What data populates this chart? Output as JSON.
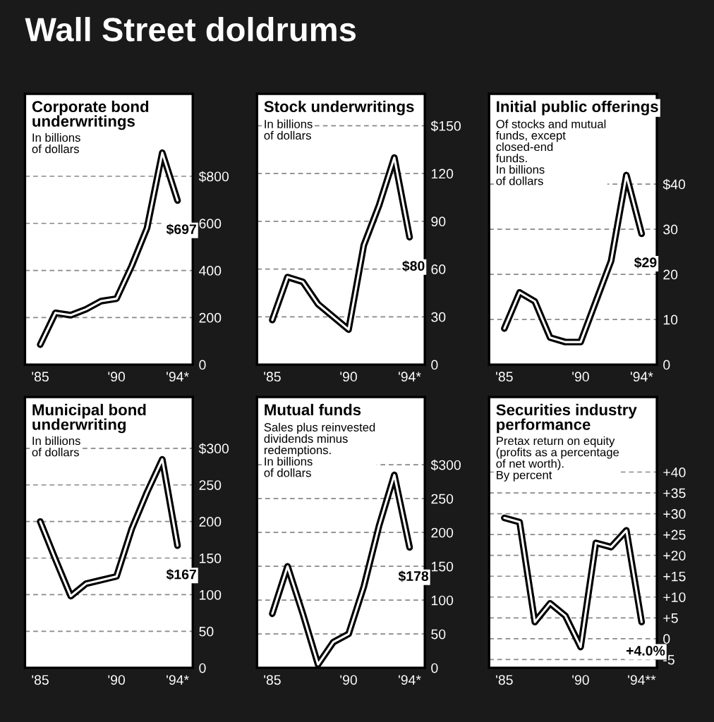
{
  "chart_data": [
    {
      "type": "other",
      "title": "Wall Street doldrums"
    },
    {
      "type": "line",
      "title": "Corporate bond\nunderwritings",
      "subtitle": "In billions\nof dollars",
      "x": [
        85,
        86,
        87,
        88,
        89,
        90,
        91,
        92,
        93,
        94
      ],
      "series": [
        {
          "color": "#000000",
          "values": [
            85,
            220,
            210,
            235,
            270,
            280,
            420,
            580,
            900,
            697
          ],
          "value_labels": [
            null,
            null,
            null,
            null,
            null,
            null,
            null,
            null,
            null,
            "$697"
          ]
        }
      ],
      "xlim": [
        84,
        95
      ],
      "xticks": [
        {
          "value": 85,
          "label": "'85"
        },
        {
          "value": 86,
          "label": null
        },
        {
          "value": 87,
          "label": null
        },
        {
          "value": 88,
          "label": null
        },
        {
          "value": 89,
          "label": null
        },
        {
          "value": 90,
          "label": "'90"
        },
        {
          "value": 91,
          "label": null
        },
        {
          "value": 92,
          "label": null
        },
        {
          "value": 93,
          "label": null
        },
        {
          "value": 94,
          "label": "'94*"
        }
      ],
      "ylim": [
        0,
        1150
      ],
      "yticks": [
        0,
        200,
        400,
        600,
        {
          "value": 800,
          "label": "$800"
        }
      ],
      "grid": "y"
    },
    {
      "type": "line",
      "title": "Stock underwritings",
      "subtitle": "In billions\nof dollars",
      "x": [
        85,
        86,
        87,
        88,
        89,
        90,
        91,
        92,
        93,
        94
      ],
      "series": [
        {
          "color": "#000000",
          "values": [
            28,
            55,
            52,
            38,
            30,
            22,
            75,
            100,
            130,
            80
          ],
          "value_labels": [
            null,
            null,
            null,
            null,
            null,
            null,
            null,
            null,
            null,
            "$80"
          ]
        }
      ],
      "xlim": [
        84,
        95
      ],
      "xticks": [
        {
          "value": 85,
          "label": "'85"
        },
        {
          "value": 86,
          "label": null
        },
        {
          "value": 87,
          "label": null
        },
        {
          "value": 88,
          "label": null
        },
        {
          "value": 89,
          "label": null
        },
        {
          "value": 90,
          "label": "'90"
        },
        {
          "value": 91,
          "label": null
        },
        {
          "value": 92,
          "label": null
        },
        {
          "value": 93,
          "label": null
        },
        {
          "value": 94,
          "label": "'94*"
        }
      ],
      "ylim": [
        0,
        170
      ],
      "yticks": [
        0,
        30,
        60,
        90,
        120,
        {
          "value": 150,
          "label": "$150"
        }
      ],
      "grid": "y"
    },
    {
      "type": "line",
      "title": "Initial public offerings",
      "subtitle": "Of stocks and mutual\nfunds, except\nclosed-end\nfunds.\nIn billions\nof dollars",
      "x": [
        85,
        86,
        87,
        88,
        89,
        90,
        91,
        92,
        93,
        94
      ],
      "series": [
        {
          "color": "#000000",
          "values": [
            8,
            16,
            14,
            6,
            5,
            5,
            14,
            23,
            42,
            29
          ],
          "value_labels": [
            null,
            null,
            null,
            null,
            null,
            null,
            null,
            null,
            null,
            "$29"
          ]
        }
      ],
      "xlim": [
        84,
        95
      ],
      "xticks": [
        {
          "value": 85,
          "label": "'85"
        },
        {
          "value": 86,
          "label": null
        },
        {
          "value": 87,
          "label": null
        },
        {
          "value": 88,
          "label": null
        },
        {
          "value": 89,
          "label": null
        },
        {
          "value": 90,
          "label": "'90"
        },
        {
          "value": 91,
          "label": null
        },
        {
          "value": 92,
          "label": null
        },
        {
          "value": 93,
          "label": null
        },
        {
          "value": 94,
          "label": "'94*"
        }
      ],
      "ylim": [
        0,
        60
      ],
      "yticks": [
        0,
        10,
        20,
        30,
        {
          "value": 40,
          "label": "$40"
        }
      ],
      "grid": "y"
    },
    {
      "type": "line",
      "title": "Municipal bond\nunderwriting",
      "subtitle": "In billions\nof dollars",
      "x": [
        85,
        86,
        87,
        88,
        89,
        90,
        91,
        92,
        93,
        94
      ],
      "series": [
        {
          "color": "#000000",
          "values": [
            200,
            148,
            98,
            115,
            120,
            125,
            190,
            240,
            285,
            167
          ],
          "value_labels": [
            null,
            null,
            null,
            null,
            null,
            null,
            null,
            null,
            null,
            "$167"
          ]
        }
      ],
      "xlim": [
        84,
        95
      ],
      "xticks": [
        {
          "value": 85,
          "label": "'85"
        },
        {
          "value": 86,
          "label": null
        },
        {
          "value": 87,
          "label": null
        },
        {
          "value": 88,
          "label": null
        },
        {
          "value": 89,
          "label": null
        },
        {
          "value": 90,
          "label": "'90"
        },
        {
          "value": 91,
          "label": null
        },
        {
          "value": 92,
          "label": null
        },
        {
          "value": 93,
          "label": null
        },
        {
          "value": 94,
          "label": "'94*"
        }
      ],
      "ylim": [
        0,
        370
      ],
      "yticks": [
        0,
        50,
        100,
        150,
        200,
        250,
        {
          "value": 300,
          "label": "$300"
        }
      ],
      "grid": "y"
    },
    {
      "type": "line",
      "title": "Mutual funds",
      "subtitle": "Sales plus reinvested\ndividends minus\nredemptions.\nIn billions\nof dollars",
      "x": [
        85,
        86,
        87,
        88,
        89,
        90,
        91,
        92,
        93,
        94
      ],
      "series": [
        {
          "color": "#000000",
          "values": [
            80,
            150,
            80,
            5,
            38,
            50,
            120,
            210,
            285,
            178
          ],
          "value_labels": [
            null,
            null,
            null,
            null,
            null,
            null,
            null,
            null,
            null,
            "$178"
          ]
        }
      ],
      "xlim": [
        84,
        95
      ],
      "xticks": [
        {
          "value": 85,
          "label": "'85"
        },
        {
          "value": 86,
          "label": null
        },
        {
          "value": 87,
          "label": null
        },
        {
          "value": 88,
          "label": null
        },
        {
          "value": 89,
          "label": null
        },
        {
          "value": 90,
          "label": "'90"
        },
        {
          "value": 91,
          "label": null
        },
        {
          "value": 92,
          "label": null
        },
        {
          "value": 93,
          "label": null
        },
        {
          "value": 94,
          "label": "'94*"
        }
      ],
      "ylim": [
        0,
        400
      ],
      "yticks": [
        0,
        50,
        100,
        150,
        200,
        250,
        {
          "value": 300,
          "label": "$300"
        }
      ],
      "grid": "y"
    },
    {
      "type": "line",
      "title": "Securities industry\nperformance",
      "subtitle": "Pretax return on equity\n(profits as a percentage\nof net worth).\nBy percent",
      "x": [
        85,
        86,
        87,
        88,
        89,
        90,
        91,
        92,
        93,
        94
      ],
      "series": [
        {
          "color": "#000000",
          "values": [
            29,
            28,
            4,
            8.5,
            5.5,
            -2,
            23,
            22,
            26,
            4.0
          ],
          "value_labels": [
            null,
            null,
            null,
            null,
            null,
            null,
            null,
            null,
            null,
            "+4.0%"
          ]
        }
      ],
      "xlim": [
        84,
        95
      ],
      "xticks": [
        {
          "value": 85,
          "label": "'85"
        },
        {
          "value": 86,
          "label": null
        },
        {
          "value": 87,
          "label": null
        },
        {
          "value": 88,
          "label": null
        },
        {
          "value": 89,
          "label": null
        },
        {
          "value": 90,
          "label": "'90"
        },
        {
          "value": 91,
          "label": null
        },
        {
          "value": 92,
          "label": null
        },
        {
          "value": 93,
          "label": null
        },
        {
          "value": 94,
          "label": "'94**"
        }
      ],
      "ylim": [
        -7,
        58
      ],
      "yticks": [
        {
          "value": -5,
          "label": "-5"
        },
        0,
        {
          "value": 5,
          "label": "+5"
        },
        {
          "value": 10,
          "label": "+10"
        },
        {
          "value": 15,
          "label": "+15"
        },
        {
          "value": 20,
          "label": "+20"
        },
        {
          "value": 25,
          "label": "+25"
        },
        {
          "value": 30,
          "label": "+30"
        },
        {
          "value": 35,
          "label": "+35"
        },
        {
          "value": 40,
          "label": "+40"
        }
      ],
      "grid": "y"
    }
  ]
}
